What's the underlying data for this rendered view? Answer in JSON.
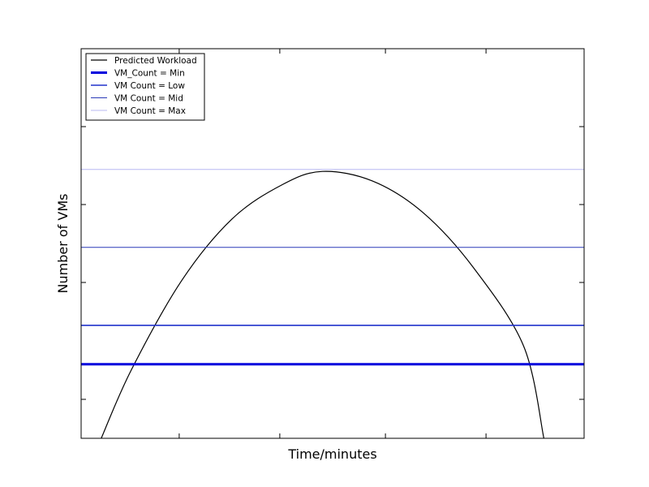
{
  "chart_data": {
    "type": "line",
    "title": "",
    "xlabel": "Time/minutes",
    "ylabel": "Number of VMs",
    "xlim": [
      0,
      100
    ],
    "ylim": [
      0,
      10
    ],
    "grid": false,
    "legend_position": "top-left",
    "x_ticks": [
      19.5,
      39.5,
      60.5,
      80.5
    ],
    "y_ticks": [
      1,
      4,
      6,
      8,
      10
    ],
    "x_ticklabels": [],
    "y_ticklabels": [],
    "series": [
      {
        "name": "Predicted Workload",
        "color": "#000000",
        "line_width": 1.2,
        "kind": "curve",
        "x": [
          4,
          10,
          20,
          30,
          40,
          48,
          58,
          68,
          78,
          88,
          92
        ],
        "y": [
          0,
          1.76,
          4.05,
          5.63,
          6.51,
          6.85,
          6.6,
          5.79,
          4.38,
          2.36,
          0
        ]
      },
      {
        "name": "VM_Count = Min",
        "color": "#0000dd",
        "line_width": 3,
        "kind": "hline",
        "y": 1.9
      },
      {
        "name": "VM Count = Low",
        "color": "#2233cc",
        "line_width": 1.6,
        "kind": "hline",
        "y": 2.9
      },
      {
        "name": "VM Count = Mid",
        "color": "#2a3ab8",
        "line_width": 1,
        "kind": "hline",
        "y": 4.9
      },
      {
        "name": "VM Count = Max",
        "color": "#b8b8f2",
        "line_width": 1,
        "kind": "hline",
        "y": 6.9
      }
    ]
  }
}
